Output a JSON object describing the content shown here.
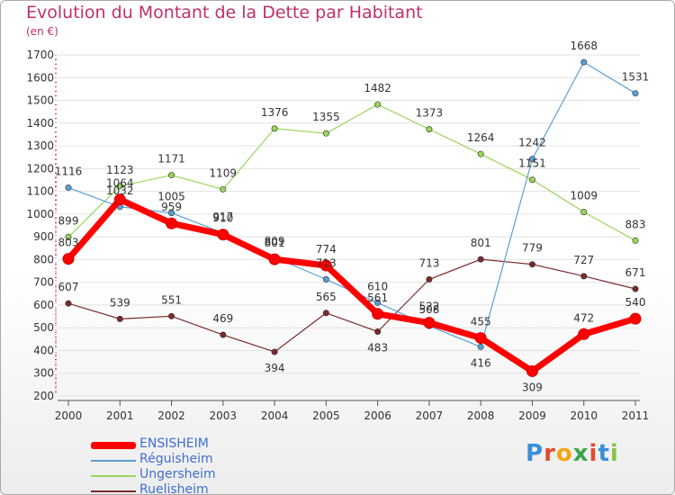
{
  "title": "Evolution du Montant de la Dette par Habitant",
  "unit": "(en €)",
  "logo": {
    "text": "Proxiti",
    "colors": [
      "#3a8fd6",
      "#e34b2f",
      "#f2a516",
      "#3aa54a",
      "#e34b2f",
      "#3a8fd6",
      "#8bc34a"
    ]
  },
  "chart_data": {
    "type": "line",
    "title": "Evolution du Montant de la Dette par Habitant",
    "ylabel": "(en €)",
    "xlabel": "",
    "x": [
      "2000",
      "2001",
      "2002",
      "2003",
      "2004",
      "2005",
      "2006",
      "2007",
      "2008",
      "2009",
      "2010",
      "2011"
    ],
    "ylim": [
      200,
      1700
    ],
    "yticks": [
      200,
      300,
      400,
      500,
      600,
      700,
      800,
      900,
      1000,
      1100,
      1200,
      1300,
      1400,
      1500,
      1600,
      1700
    ],
    "grid": "horizontal",
    "legend": "bottom-left",
    "series": [
      {
        "name": "ENSISHEIM",
        "color": "#ff0000",
        "values": [
          803,
          1064,
          959,
          910,
          801,
          774,
          561,
          522,
          455,
          309,
          472,
          540
        ],
        "labels": [
          "803",
          "1064",
          "959",
          "910",
          "801",
          "774",
          "561",
          "522",
          "455",
          "309",
          "472",
          "540"
        ]
      },
      {
        "name": "Réguisheim",
        "color": "#5a9fd4",
        "values": [
          1116,
          1032,
          1005,
          917,
          809,
          713,
          610,
          508,
          416,
          1242,
          1668,
          1531
        ],
        "labels": [
          "1116",
          "1032",
          "1005",
          "917",
          "809",
          "713",
          "610",
          "508",
          "416",
          "1242",
          "1668",
          "1531"
        ]
      },
      {
        "name": "Ungersheim",
        "color": "#99d65a",
        "values": [
          899,
          1123,
          1171,
          1109,
          1376,
          1355,
          1482,
          1373,
          1264,
          1151,
          1009,
          883
        ],
        "labels": [
          "899",
          "1123",
          "1171",
          "1109",
          "1376",
          "1355",
          "1482",
          "1373",
          "1264",
          "1151",
          "1009",
          "883"
        ]
      },
      {
        "name": "Ruelisheim",
        "color": "#7a2a2a",
        "values": [
          607,
          539,
          551,
          469,
          394,
          565,
          483,
          713,
          801,
          779,
          727,
          671
        ],
        "labels": [
          "607",
          "539",
          "551",
          "469",
          "394",
          "565",
          "483",
          "713",
          "801",
          "779",
          "727",
          "671"
        ]
      }
    ]
  }
}
